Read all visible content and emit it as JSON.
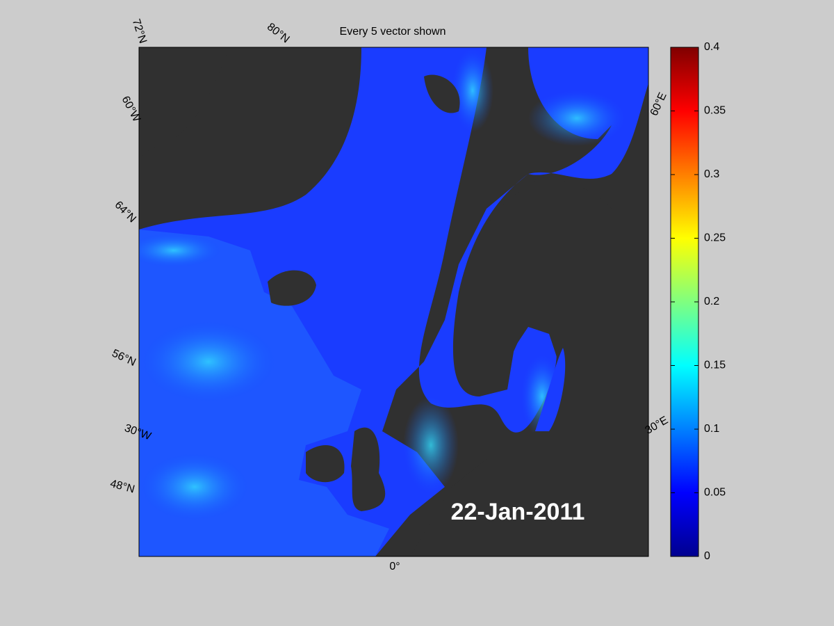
{
  "title": "Every 5 vector shown",
  "date_label": "22-Jan-2011",
  "map_labels": [
    "72°N",
    "80°N",
    "60°W",
    "64°N",
    "56°N",
    "30°W",
    "48°N",
    "0°",
    "30°E",
    "60°E"
  ],
  "colorbar": {
    "lim": [
      0,
      0.4
    ],
    "ticks": [
      0,
      0.05,
      0.1,
      0.15,
      0.2,
      0.25,
      0.3,
      0.35,
      0.4
    ]
  }
}
